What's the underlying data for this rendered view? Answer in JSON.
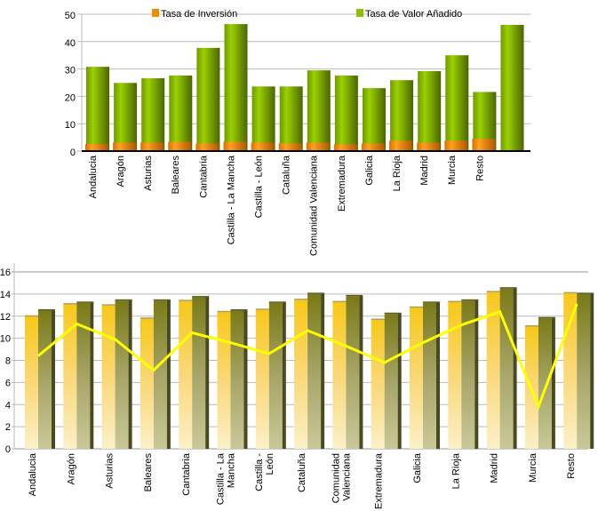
{
  "colors": {
    "inversion": "#f08c00",
    "valor": "#7aaa00",
    "bar_left": "#f7c81e",
    "bar_right": "#7a7a1a",
    "line": "#ffff00",
    "grid": "#bbbbbb"
  },
  "chart_data": [
    {
      "type": "bar",
      "legend": [
        "Tasa de Inversión",
        "Tasa de Valor Añadido"
      ],
      "legend_placement": "top",
      "categories": [
        "Andalucia",
        "Aragón",
        "Asturias",
        "Baleares",
        "Cantabria",
        "Castilla - La Mancha",
        "Castilla - León",
        "Cataluña",
        "Comunidad Valenciana",
        "Extremadura",
        "Galicia",
        "La Rioja",
        "Madrid",
        "Murcia",
        "Resto",
        ""
      ],
      "series": [
        {
          "name": "Tasa de Inversión",
          "values": [
            2.6,
            3.1,
            3.1,
            3.4,
            2.8,
            3.4,
            3.1,
            2.8,
            3.1,
            2.5,
            2.8,
            3.8,
            3.1,
            3.8,
            4.5,
            null
          ]
        },
        {
          "name": "Tasa de Valor Añadido",
          "values": [
            30.8,
            24.9,
            26.6,
            27.6,
            37.7,
            46.4,
            23.6,
            23.6,
            29.5,
            27.6,
            23.0,
            25.9,
            29.2,
            35.0,
            21.6,
            46.1
          ]
        }
      ],
      "ylim": [
        0,
        50
      ],
      "yticks": [
        0,
        10,
        20,
        30,
        40,
        50
      ],
      "grid": true
    },
    {
      "type": "bar",
      "categories": [
        "Andalucia",
        "Aragón",
        "Asturias",
        "Baleares",
        "Cantabria",
        "Castilla - La Mancha",
        "Castilla - León",
        "Cataluña",
        "Comunidad Valenciana",
        "Extremadura",
        "Galicia",
        "La Rioja",
        "Madrid",
        "Murcia",
        "Resto"
      ],
      "series": [
        {
          "values": [
            12.0,
            13.1,
            13.0,
            11.8,
            13.4,
            12.4,
            12.6,
            13.5,
            13.3,
            11.7,
            12.8,
            13.3,
            14.2,
            11.1,
            14.1
          ]
        },
        {
          "values": [
            12.5,
            13.2,
            13.4,
            13.4,
            13.7,
            12.5,
            13.2,
            14.0,
            13.8,
            12.2,
            13.2,
            13.4,
            14.5,
            11.8,
            14.0
          ]
        },
        {
          "type": "line",
          "values": [
            8.4,
            11.3,
            9.9,
            7.1,
            10.5,
            9.6,
            8.6,
            10.7,
            9.3,
            7.8,
            9.6,
            11.2,
            12.4,
            3.8,
            13.1
          ]
        }
      ],
      "ylim": [
        0,
        16
      ],
      "yticks": [
        0,
        2,
        4,
        6,
        8,
        10,
        12,
        14,
        16
      ],
      "grid": true
    }
  ]
}
